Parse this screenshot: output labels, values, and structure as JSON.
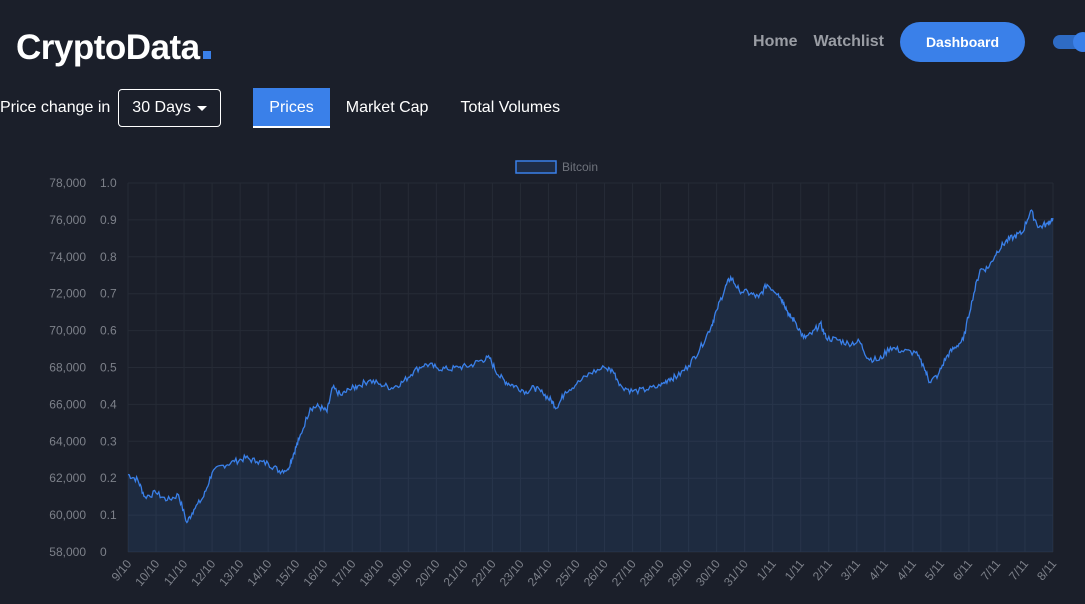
{
  "header": {
    "logo": "CryptoData",
    "nav": [
      "Home",
      "Watchlist"
    ],
    "dashboard_label": "Dashboard"
  },
  "controls": {
    "price_change_label": "Price change in",
    "days_selected": "30 Days",
    "tabs": [
      "Prices",
      "Market Cap",
      "Total Volumes"
    ],
    "active_tab": 0
  },
  "colors": {
    "accent": "#3a80e9",
    "background": "#1b1f2a",
    "line": "#3a80e9"
  },
  "chart_data": {
    "type": "area",
    "legend": [
      "Bitcoin"
    ],
    "legend_position": "top-center",
    "grid": true,
    "y_left": {
      "min": 58000,
      "max": 78000,
      "ticks": [
        "78,000",
        "76,000",
        "74,000",
        "72,000",
        "70,000",
        "68,000",
        "66,000",
        "64,000",
        "62,000",
        "60,000",
        "58,000"
      ]
    },
    "y_right": {
      "min": 0,
      "max": 1,
      "ticks": [
        "1.0",
        "0.9",
        "0.8",
        "0.7",
        "0.6",
        "0.5",
        "0.4",
        "0.3",
        "0.2",
        "0.1",
        "0"
      ]
    },
    "x_ticks": [
      "9/10",
      "10/10",
      "11/10",
      "12/10",
      "13/10",
      "14/10",
      "15/10",
      "16/10",
      "17/10",
      "18/10",
      "19/10",
      "20/10",
      "21/10",
      "22/10",
      "23/10",
      "24/10",
      "25/10",
      "26/10",
      "27/10",
      "28/10",
      "29/10",
      "30/10",
      "31/10",
      "1/11",
      "1/11",
      "2/11",
      "3/11",
      "4/11",
      "4/11",
      "5/11",
      "6/11",
      "7/11",
      "7/11",
      "8/11"
    ],
    "series": [
      {
        "name": "Bitcoin",
        "points": [
          [
            0,
            62200
          ],
          [
            0.35,
            61900
          ],
          [
            0.6,
            61000
          ],
          [
            1,
            61200
          ],
          [
            1.4,
            60800
          ],
          [
            1.8,
            61100
          ],
          [
            2.1,
            59600
          ],
          [
            2.35,
            60300
          ],
          [
            2.7,
            61000
          ],
          [
            3,
            62300
          ],
          [
            3.4,
            62700
          ],
          [
            3.8,
            62900
          ],
          [
            4.2,
            63100
          ],
          [
            4.6,
            62900
          ],
          [
            5,
            62800
          ],
          [
            5.4,
            62400
          ],
          [
            5.7,
            62500
          ],
          [
            5.9,
            63300
          ],
          [
            6.1,
            64100
          ],
          [
            6.5,
            65800
          ],
          [
            6.8,
            65900
          ],
          [
            7.1,
            65600
          ],
          [
            7.3,
            66900
          ],
          [
            7.6,
            66500
          ],
          [
            7.9,
            66800
          ],
          [
            8.2,
            67000
          ],
          [
            8.6,
            67300
          ],
          [
            9,
            67100
          ],
          [
            9.4,
            66900
          ],
          [
            9.8,
            67200
          ],
          [
            10.2,
            67800
          ],
          [
            10.6,
            68200
          ],
          [
            11,
            68000
          ],
          [
            11.4,
            67900
          ],
          [
            11.8,
            68000
          ],
          [
            12.2,
            68100
          ],
          [
            12.6,
            68400
          ],
          [
            12.9,
            68500
          ],
          [
            13.2,
            67600
          ],
          [
            13.5,
            67200
          ],
          [
            13.8,
            67000
          ],
          [
            14.2,
            66700
          ],
          [
            14.5,
            66900
          ],
          [
            14.8,
            66600
          ],
          [
            15.1,
            66200
          ],
          [
            15.3,
            65800
          ],
          [
            15.6,
            66700
          ],
          [
            16,
            67100
          ],
          [
            16.5,
            67700
          ],
          [
            17,
            68000
          ],
          [
            17.3,
            67800
          ],
          [
            17.6,
            67000
          ],
          [
            18,
            66700
          ],
          [
            18.5,
            66800
          ],
          [
            19,
            67000
          ],
          [
            19.3,
            67400
          ],
          [
            19.6,
            67500
          ],
          [
            20,
            68100
          ],
          [
            20.4,
            69000
          ],
          [
            20.8,
            70200
          ],
          [
            21,
            71100
          ],
          [
            21.3,
            72300
          ],
          [
            21.5,
            72900
          ],
          [
            21.8,
            72200
          ],
          [
            22.2,
            72000
          ],
          [
            22.5,
            71800
          ],
          [
            22.8,
            72500
          ],
          [
            23.2,
            72000
          ],
          [
            23.4,
            71500
          ],
          [
            23.6,
            70800
          ],
          [
            23.8,
            70500
          ],
          [
            24.1,
            69600
          ],
          [
            24.4,
            69800
          ],
          [
            24.7,
            70400
          ],
          [
            24.9,
            69600
          ],
          [
            25.3,
            69500
          ],
          [
            25.7,
            69300
          ],
          [
            26.1,
            69400
          ],
          [
            26.4,
            68500
          ],
          [
            26.8,
            68400
          ],
          [
            27.2,
            69100
          ],
          [
            27.6,
            68900
          ],
          [
            28.1,
            68800
          ],
          [
            28.4,
            68000
          ],
          [
            28.6,
            67200
          ],
          [
            28.9,
            67600
          ],
          [
            29.2,
            68600
          ],
          [
            29.5,
            69100
          ],
          [
            29.8,
            69500
          ],
          [
            30.1,
            71600
          ],
          [
            30.4,
            73300
          ],
          [
            30.7,
            73400
          ],
          [
            31,
            74300
          ],
          [
            31.3,
            74800
          ],
          [
            31.6,
            75100
          ],
          [
            31.9,
            75300
          ],
          [
            32.2,
            76500
          ],
          [
            32.5,
            75600
          ],
          [
            32.8,
            75800
          ],
          [
            33,
            76100
          ]
        ]
      }
    ]
  }
}
